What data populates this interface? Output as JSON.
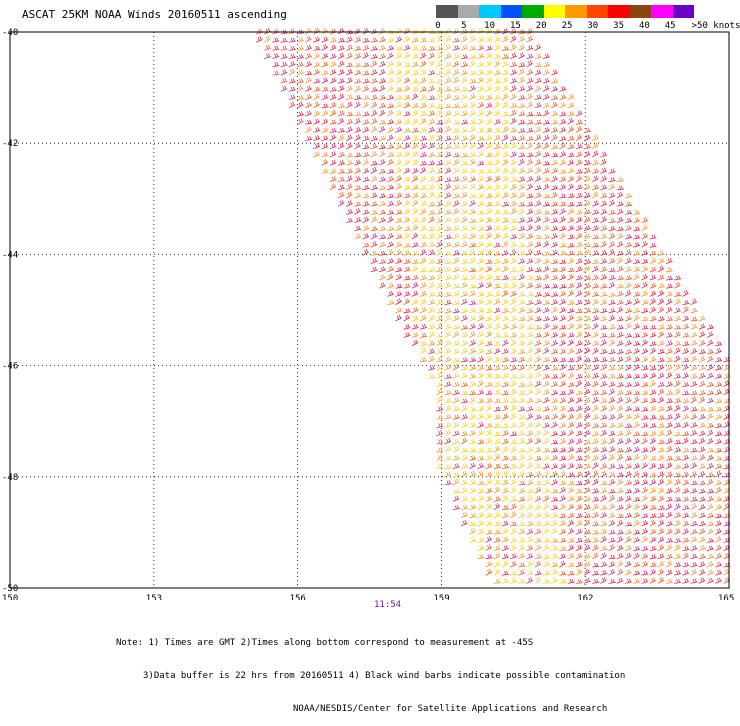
{
  "title": "ASCAT 25KM NOAA Winds 20160511 ascending",
  "legend": {
    "unit_label": ">50 knots",
    "ticks": [
      "0",
      "5",
      "10",
      "15",
      "20",
      "25",
      "30",
      "35",
      "40",
      "45"
    ],
    "colors": [
      "#555555",
      "#aaaaaa",
      "#00c8ff",
      "#0050ff",
      "#00aa00",
      "#ffff00",
      "#ff9900",
      "#ff4400",
      "#ff0000",
      "#8b4513",
      "#ff00ff",
      "#6a00c8"
    ]
  },
  "map": {
    "lat_labels": [
      "-40",
      "-42",
      "-44",
      "-46",
      "-48",
      "-50"
    ],
    "lon_labels": [
      "150",
      "153",
      "156",
      "159",
      "162",
      "165"
    ],
    "lat_range": [
      -50,
      -40
    ],
    "lon_range": [
      150,
      165
    ],
    "swath_corners_lonlat": [
      [
        155.0,
        -40.0
      ],
      [
        160.8,
        -40.0
      ],
      [
        165.0,
        -46.0
      ],
      [
        165.0,
        -50.0
      ],
      [
        160.0,
        -50.0
      ],
      [
        158.8,
        -47.8
      ],
      [
        158.8,
        -46.5
      ]
    ],
    "barb_colors": [
      "#e8244a",
      "#f05a28",
      "#f39a2a",
      "#f7d21e",
      "#d92a6e"
    ],
    "time_label": "11:54"
  },
  "notes": {
    "line1": "Note: 1) Times are GMT 2)Times along bottom correspond to measurement at -45S",
    "line2": "3)Data buffer is 22 hrs from 20160511 4) Black wind barbs indicate possible contamination",
    "line3": "NOAA/NESDIS/Center for Satellite Applications and Research"
  }
}
